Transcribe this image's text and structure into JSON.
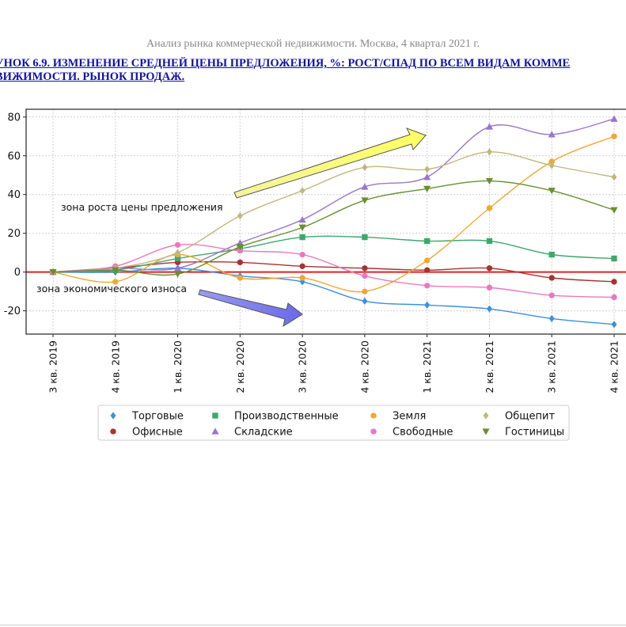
{
  "header": {
    "text": "Анализ рынка коммерческой недвижимости.  Москва, 4 квартал 2021 г."
  },
  "figure_title": {
    "line1": "УНОК 6.9. ИЗМЕНЕНИЕ СРЕДНЕЙ ЦЕНЫ ПРЕДЛОЖЕНИЯ, %: РОСТ/СПАД ПО ВСЕМ ВИДАМ КОММЕ",
    "line2": "ВИЖИМОСТИ. РЫНОК ПРОДАЖ."
  },
  "chart_data": {
    "type": "line",
    "categories": [
      "3 кв. 2019",
      "4 кв. 2019",
      "1 кв. 2020",
      "2 кв. 2020",
      "3 кв. 2020",
      "4 кв. 2020",
      "1 кв. 2021",
      "2 кв. 2021",
      "3 кв. 2021",
      "4 кв. 2021"
    ],
    "ylim": [
      -32,
      84
    ],
    "yticks": [
      -20,
      0,
      20,
      40,
      60,
      80
    ],
    "grid": true,
    "legend_position": "bottom",
    "annotations": {
      "growth_zone": "зона роста цены предложения",
      "decline_zone": "зона экономического износа"
    },
    "series": [
      {
        "name": "Торговые",
        "color": "#3c8fdc",
        "marker": "diamond",
        "values": [
          0,
          0,
          2,
          -2,
          -5,
          -15,
          -17,
          -19,
          -24,
          -27
        ]
      },
      {
        "name": "Офисные",
        "color": "#a83232",
        "marker": "circle",
        "values": [
          0,
          2,
          5,
          5,
          3,
          2,
          1,
          2,
          -3,
          -5
        ]
      },
      {
        "name": "Производственные",
        "color": "#3aaa6a",
        "marker": "square",
        "values": [
          0,
          1,
          7,
          12,
          18,
          18,
          16,
          16,
          9,
          7
        ]
      },
      {
        "name": "Складские",
        "color": "#9a76cc",
        "marker": "triangle-up",
        "values": [
          0,
          2,
          2,
          15,
          27,
          44,
          49,
          75,
          71,
          79
        ]
      },
      {
        "name": "Земля",
        "color": "#f0a830",
        "marker": "circle",
        "values": [
          0,
          -5,
          9,
          -3,
          -3,
          -10,
          6,
          33,
          57,
          70
        ]
      },
      {
        "name": "Свободные",
        "color": "#ea78c0",
        "marker": "circle",
        "values": [
          0,
          3,
          14,
          11,
          9,
          -2,
          -7,
          -8,
          -12,
          -13
        ]
      },
      {
        "name": "Общепит",
        "color": "#bfb77e",
        "marker": "diamond",
        "values": [
          0,
          2,
          10,
          29,
          42,
          54,
          53,
          62,
          55,
          49
        ]
      },
      {
        "name": "Гостиницы",
        "color": "#6a8f2f",
        "marker": "triangle-down",
        "values": [
          0,
          1,
          -1,
          13,
          23,
          37,
          43,
          47,
          42,
          32
        ]
      }
    ],
    "reference_line": {
      "value": 0,
      "color": "#dd2222"
    }
  }
}
